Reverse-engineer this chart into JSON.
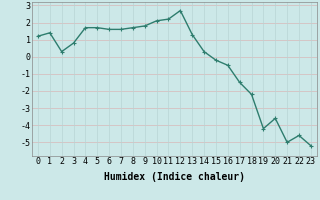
{
  "x": [
    0,
    1,
    2,
    3,
    4,
    5,
    6,
    7,
    8,
    9,
    10,
    11,
    12,
    13,
    14,
    15,
    16,
    17,
    18,
    19,
    20,
    21,
    22,
    23
  ],
  "y": [
    1.2,
    1.4,
    0.3,
    0.8,
    1.7,
    1.7,
    1.6,
    1.6,
    1.7,
    1.8,
    2.1,
    2.2,
    2.7,
    1.3,
    0.3,
    -0.2,
    -0.5,
    -1.5,
    -2.2,
    -4.2,
    -3.6,
    -5.0,
    -4.6,
    -5.2
  ],
  "line_color": "#2e7d6e",
  "marker_color": "#2e7d6e",
  "bg_color": "#cce8e8",
  "grid_color_r": "#d8b8b8",
  "grid_color_c": "#b8d4d4",
  "xlabel": "Humidex (Indice chaleur)",
  "ylim": [
    -5.8,
    3.2
  ],
  "xlim": [
    -0.5,
    23.5
  ],
  "yticks": [
    -5,
    -4,
    -3,
    -2,
    -1,
    0,
    1,
    2,
    3
  ],
  "xticks": [
    0,
    1,
    2,
    3,
    4,
    5,
    6,
    7,
    8,
    9,
    10,
    11,
    12,
    13,
    14,
    15,
    16,
    17,
    18,
    19,
    20,
    21,
    22,
    23
  ],
  "xlabel_fontsize": 7,
  "tick_fontsize": 6,
  "marker_size": 2.5,
  "line_width": 1.0
}
